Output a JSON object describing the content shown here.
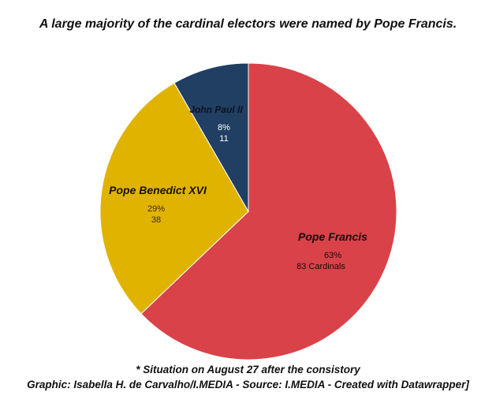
{
  "title": "A large majority of the cardinal electors were named by Pope Francis.",
  "footnote": "* Situation on August 27 after the consistory",
  "credit": "Graphic: Isabella H. de Carvalho/I.MEDIA - Source: I.MEDIA - Created with Datawrapper]",
  "chart_data": {
    "type": "pie",
    "title": "A large majority of the cardinal electors were named by Pope Francis.",
    "slices": [
      {
        "name": "Pope Francis",
        "percent_label": "63%",
        "count_label": "83 Cardinals",
        "value": 83,
        "color": "#d94249"
      },
      {
        "name": "Pope Benedict XVI",
        "percent_label": "29%",
        "count_label": "38",
        "value": 38,
        "color": "#e0b300"
      },
      {
        "name": "John Paul II",
        "percent_label": "8%",
        "count_label": "11",
        "value": 11,
        "color": "#203f63"
      }
    ],
    "start": "top",
    "direction": "clockwise"
  }
}
